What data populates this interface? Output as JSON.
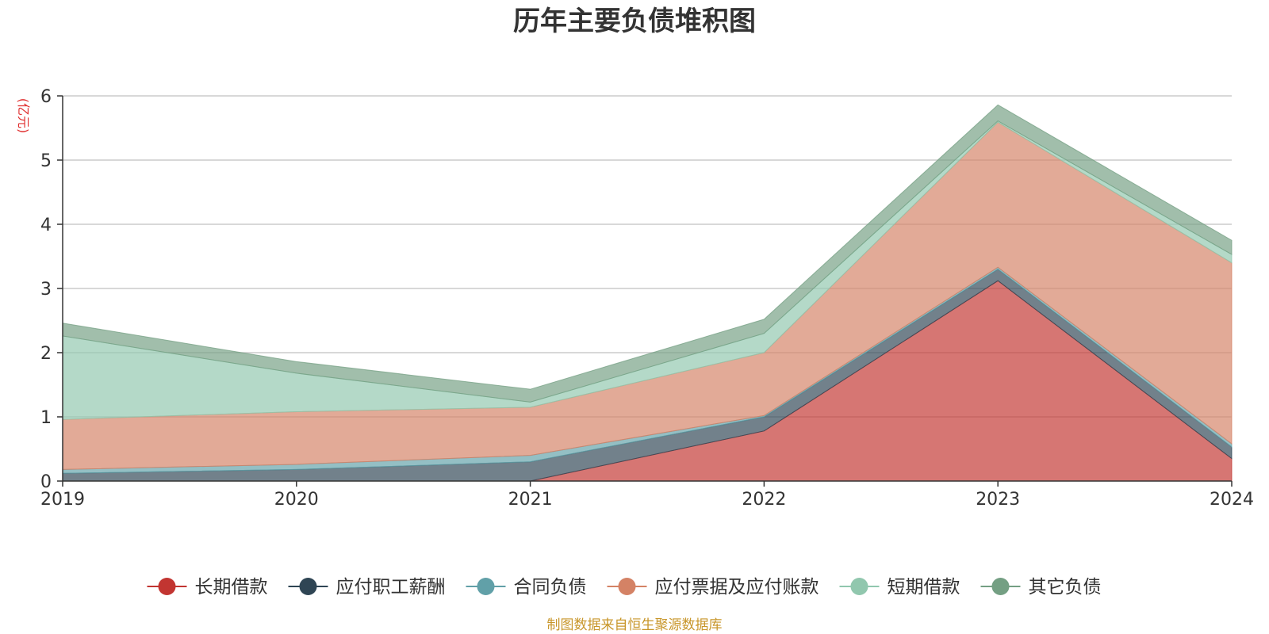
{
  "chart_data": {
    "type": "area",
    "stacked": true,
    "title": "历年主要负债堆积图",
    "unit_label": "(亿元)",
    "unit_color": "#e03030",
    "source_text": "制图数据来自恒生聚源数据库",
    "source_color": "#c8962a",
    "xlabel": "",
    "ylabel": "",
    "categories": [
      "2019",
      "2020",
      "2021",
      "2022",
      "2023",
      "2024"
    ],
    "ylim": [
      0,
      6
    ],
    "yticks": [
      "0",
      "1",
      "2",
      "3",
      "4",
      "5",
      "6"
    ],
    "grid": true,
    "legend_position": "bottom-center",
    "series": [
      {
        "name": "长期借款",
        "color": "#c23531",
        "values": [
          0,
          0,
          0,
          0.78,
          3.12,
          0.35
        ]
      },
      {
        "name": "应付职工薪酬",
        "color": "#2f4554",
        "values": [
          0.12,
          0.18,
          0.3,
          0.22,
          0.18,
          0.18
        ]
      },
      {
        "name": "合同负债",
        "color": "#61a0a8",
        "values": [
          0.06,
          0.08,
          0.1,
          0.02,
          0.03,
          0.05
        ]
      },
      {
        "name": "应付票据及应付账款",
        "color": "#d48265",
        "values": [
          0.78,
          0.82,
          0.75,
          0.98,
          2.26,
          2.82
        ]
      },
      {
        "name": "短期借款",
        "color": "#91c7ae",
        "values": [
          1.3,
          0.6,
          0.08,
          0.3,
          0.02,
          0.13
        ]
      },
      {
        "name": "其它负债",
        "color": "#749f83",
        "values": [
          0.2,
          0.18,
          0.2,
          0.22,
          0.25,
          0.22
        ]
      }
    ]
  }
}
